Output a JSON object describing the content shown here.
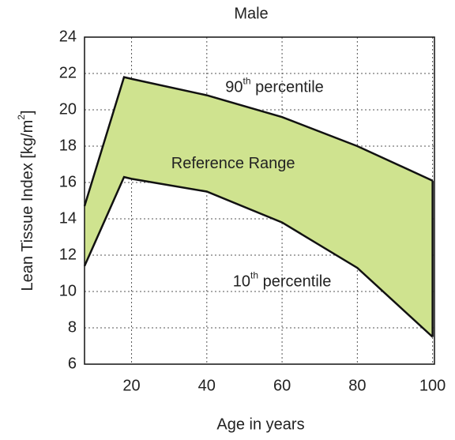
{
  "chart_data": {
    "type": "band",
    "title": "Male",
    "xlabel": "Age in years",
    "ylabel": {
      "text": "Lean Tissue Index [kg/m",
      "sup": "2",
      "end": "]"
    },
    "x": [
      7.5,
      18,
      20,
      40,
      60,
      80,
      100
    ],
    "series": [
      {
        "name": "90th percentile",
        "color": "#111111",
        "values": [
          14.7,
          21.8,
          21.7,
          20.8,
          19.6,
          18.0,
          16.1
        ]
      },
      {
        "name": "10th percentile",
        "color": "#111111",
        "values": [
          11.4,
          16.3,
          16.2,
          15.5,
          13.8,
          11.3,
          7.5
        ]
      }
    ],
    "fill": "#cfe38f",
    "annotations": [
      {
        "text": "90",
        "sup": "th",
        "rest": " percentile",
        "x": 58,
        "y": 21.2
      },
      {
        "text": "Reference Range",
        "x": 47,
        "y": 17.0
      },
      {
        "text": "10",
        "sup": "th",
        "rest": " percentile",
        "x": 60,
        "y": 10.5
      }
    ],
    "xlim": [
      7.5,
      100.5
    ],
    "xticks": [
      20,
      40,
      60,
      80,
      100
    ],
    "ylim": [
      6,
      24
    ],
    "yticks": [
      6,
      8,
      10,
      12,
      14,
      16,
      18,
      20,
      22,
      24
    ],
    "grid": true
  }
}
